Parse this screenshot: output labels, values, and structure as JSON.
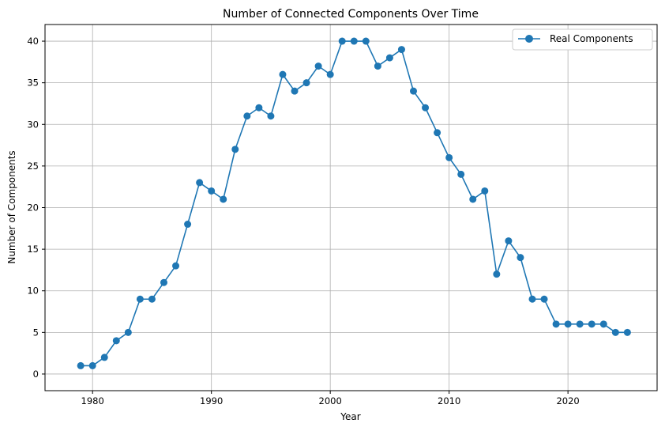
{
  "chart_data": {
    "type": "line",
    "title": "Number of Connected Components Over Time",
    "xlabel": "Year",
    "ylabel": "Number of Components",
    "xlim": [
      1976,
      2027.5
    ],
    "ylim": [
      -2,
      42
    ],
    "xticks": [
      1980,
      1990,
      2000,
      2010,
      2020
    ],
    "yticks": [
      0,
      5,
      10,
      15,
      20,
      25,
      30,
      35,
      40
    ],
    "grid": true,
    "legend_position": "top-right",
    "series": [
      {
        "name": "Real Components",
        "color": "#1f77b4",
        "marker": "circle",
        "x": [
          1979,
          1980,
          1981,
          1982,
          1983,
          1984,
          1985,
          1986,
          1987,
          1988,
          1989,
          1990,
          1991,
          1992,
          1993,
          1994,
          1995,
          1996,
          1997,
          1998,
          1999,
          2000,
          2001,
          2002,
          2003,
          2004,
          2005,
          2006,
          2007,
          2008,
          2009,
          2010,
          2011,
          2012,
          2013,
          2014,
          2015,
          2016,
          2017,
          2018,
          2019,
          2020,
          2021,
          2022,
          2023,
          2024,
          2025
        ],
        "y": [
          1,
          1,
          2,
          4,
          5,
          9,
          9,
          11,
          13,
          18,
          23,
          22,
          21,
          27,
          31,
          32,
          31,
          36,
          34,
          35,
          37,
          36,
          40,
          40,
          40,
          37,
          38,
          39,
          34,
          32,
          29,
          26,
          24,
          21,
          22,
          12,
          16,
          14,
          9,
          9,
          6,
          6,
          6,
          6,
          6,
          5,
          5
        ]
      }
    ]
  }
}
